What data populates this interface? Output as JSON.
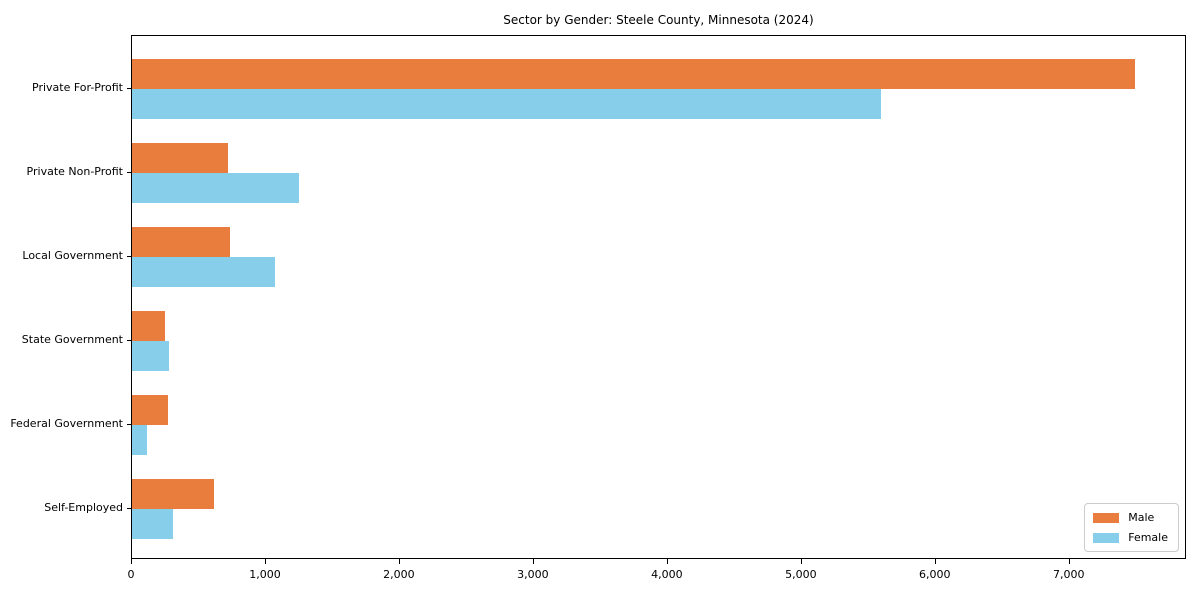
{
  "chart_data": {
    "type": "bar",
    "orientation": "horizontal",
    "title": "Sector by Gender: Steele County, Minnesota (2024)",
    "categories": [
      "Private For-Profit",
      "Private Non-Profit",
      "Local Government",
      "State Government",
      "Federal Government",
      "Self-Employed"
    ],
    "series": [
      {
        "name": "Male",
        "color": "#e87d3e",
        "values": [
          7500,
          720,
          730,
          250,
          270,
          610
        ]
      },
      {
        "name": "Female",
        "color": "#87ceeb",
        "values": [
          5600,
          1250,
          1070,
          280,
          110,
          310
        ]
      }
    ],
    "xlabel": "",
    "ylabel": "",
    "xlim": [
      0,
      7875
    ],
    "xticks": [
      0,
      1000,
      2000,
      3000,
      4000,
      5000,
      6000,
      7000
    ],
    "xtick_labels": [
      "0",
      "1,000",
      "2,000",
      "3,000",
      "4,000",
      "5,000",
      "6,000",
      "7,000"
    ],
    "grid": false,
    "legend": {
      "position": "lower right"
    }
  }
}
